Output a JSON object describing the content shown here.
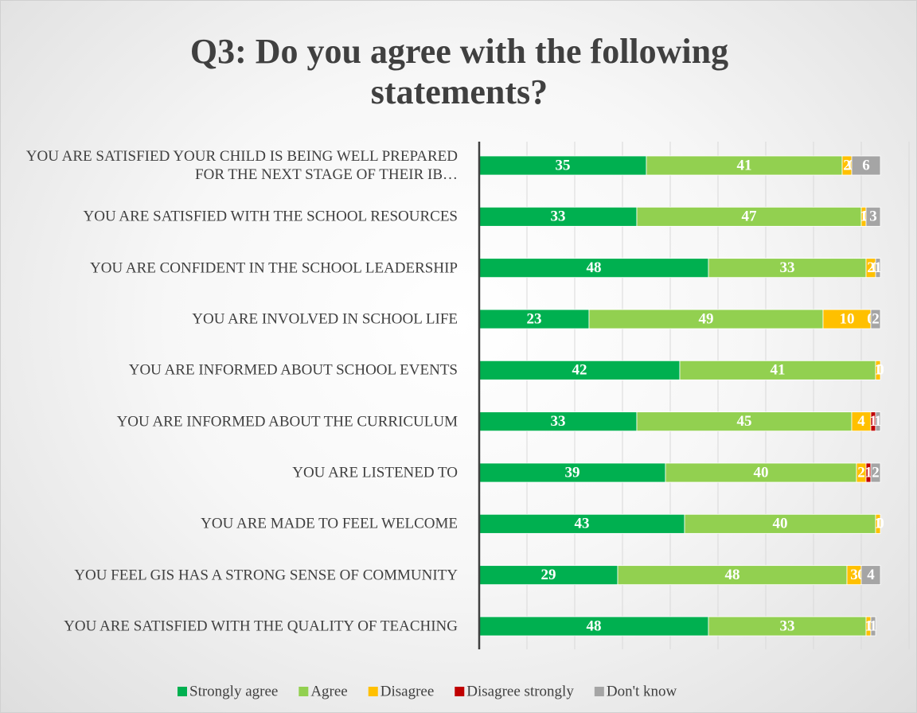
{
  "chart_data": {
    "type": "stacked-bar-horizontal",
    "title": "Q3: Do you agree with the following statements?",
    "categories": [
      "YOU ARE SATISFIED YOUR CHILD IS BEING WELL PREPARED FOR THE NEXT STAGE OF THEIR IB…",
      "YOU ARE SATISFIED WITH THE SCHOOL RESOURCES",
      "YOU ARE CONFIDENT IN THE SCHOOL LEADERSHIP",
      "YOU ARE INVOLVED IN SCHOOL LIFE",
      "YOU ARE INFORMED ABOUT SCHOOL EVENTS",
      "YOU ARE INFORMED ABOUT THE CURRICULUM",
      "YOU ARE LISTENED TO",
      "YOU ARE MADE TO FEEL WELCOME",
      "YOU FEEL GIS HAS A STRONG SENSE OF COMMUNITY",
      "YOU ARE SATISFIED WITH THE QUALITY OF TEACHING"
    ],
    "series": [
      {
        "name": "Strongly agree",
        "color": "#00b050",
        "values": [
          35,
          33,
          48,
          23,
          42,
          33,
          39,
          43,
          29,
          48
        ]
      },
      {
        "name": "Agree",
        "color": "#92d050",
        "values": [
          41,
          47,
          33,
          49,
          41,
          45,
          40,
          40,
          48,
          33
        ]
      },
      {
        "name": "Disagree",
        "color": "#ffc000",
        "values": [
          2,
          1,
          2,
          10,
          1,
          4,
          2,
          1,
          3,
          1
        ]
      },
      {
        "name": "Disagree strongly",
        "color": "#c00000",
        "values": [
          0,
          0,
          0,
          0,
          0,
          1,
          1,
          0,
          0,
          0
        ]
      },
      {
        "name": "Don't know",
        "color": "#a5a5a5",
        "values": [
          6,
          3,
          1,
          2,
          0,
          1,
          2,
          0,
          4,
          1
        ]
      }
    ],
    "xlim": [
      0,
      90
    ],
    "xticks": [
      0,
      10,
      20,
      30,
      40,
      50,
      60,
      70,
      80,
      90
    ],
    "grid": true,
    "legend": "bottom"
  }
}
